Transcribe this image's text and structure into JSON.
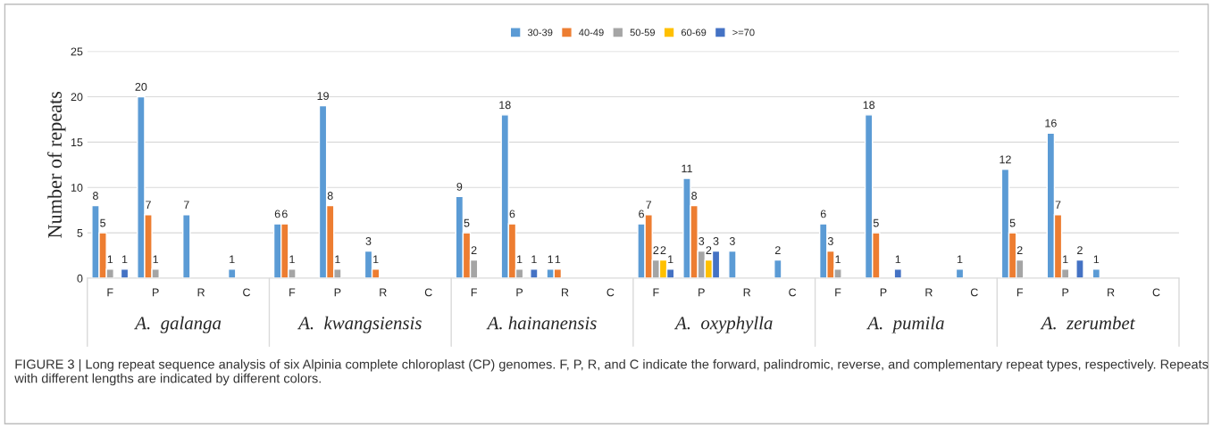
{
  "chart_data": {
    "type": "bar",
    "categories": [
      "F",
      "P",
      "R",
      "C",
      "F",
      "P",
      "R",
      "C",
      "F",
      "P",
      "R",
      "C",
      "F",
      "P",
      "R",
      "C",
      "F",
      "P",
      "R",
      "C",
      "F",
      "P",
      "R",
      "C"
    ],
    "ylabel": "Number of repeats",
    "ylim": [
      0,
      25
    ],
    "yticks": [
      0,
      5,
      10,
      15,
      20,
      25
    ],
    "grid": "y",
    "legend": "top",
    "data_labels": true,
    "series": [
      {
        "name": "30-39",
        "color": "#5b9bd5",
        "values": [
          8,
          20,
          7,
          1,
          6,
          19,
          3,
          null,
          9,
          18,
          1,
          null,
          6,
          11,
          3,
          2,
          6,
          18,
          null,
          1,
          12,
          16,
          1,
          null
        ]
      },
      {
        "name": "40-49",
        "color": "#ed7d31",
        "values": [
          5,
          7,
          null,
          null,
          6,
          8,
          1,
          null,
          5,
          6,
          1,
          null,
          7,
          8,
          null,
          null,
          3,
          5,
          null,
          null,
          5,
          7,
          null,
          null
        ]
      },
      {
        "name": "50-59",
        "color": "#a5a5a5",
        "values": [
          1,
          1,
          null,
          null,
          1,
          1,
          null,
          null,
          2,
          1,
          null,
          null,
          2,
          3,
          null,
          null,
          1,
          null,
          null,
          null,
          2,
          1,
          null,
          null
        ]
      },
      {
        "name": "60-69",
        "color": "#ffc000",
        "values": [
          null,
          null,
          null,
          null,
          null,
          null,
          null,
          null,
          null,
          null,
          null,
          null,
          2,
          2,
          null,
          null,
          null,
          null,
          null,
          null,
          null,
          null,
          null,
          null
        ]
      },
      {
        "name": ">=70",
        "color": "#4472c4",
        "values": [
          1,
          null,
          null,
          null,
          null,
          null,
          null,
          null,
          null,
          1,
          null,
          null,
          1,
          3,
          null,
          null,
          null,
          1,
          null,
          null,
          null,
          2,
          null,
          null
        ]
      }
    ],
    "annotations": [
      "A.  galanga",
      "A.  kwangsiensis",
      "A. hainanensis",
      "A.  oxyphylla",
      "A.  pumila",
      "A.  zerumbet",
      "FIGURE 3 | Long repeat sequence analysis of six Alpinia complete chloroplast (CP) genomes. F, P, R, and C indicate the forward, palindromic, reverse, and complementary repeat types, respectively. Repeats with different lengths are indicated by different colors."
    ]
  }
}
